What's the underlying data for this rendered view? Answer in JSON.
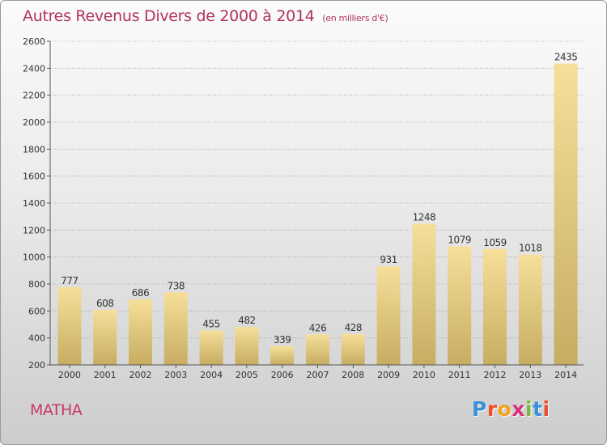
{
  "header": {
    "title": "Autres Revenus Divers de 2000 à 2014",
    "subtitle": "(en milliers d'€)"
  },
  "footer": {
    "place": "MATHA",
    "logo_letters": [
      "P",
      "r",
      "o",
      "x",
      "i",
      "t",
      "i"
    ],
    "logo_colors": [
      "#3a8fd6",
      "#e94f2d",
      "#f2a21d",
      "#d6307b",
      "#7ab83b",
      "#3a8fd6",
      "#e94f2d"
    ]
  },
  "colors": {
    "title": "#b0325f",
    "bar_light": "#f6df9a",
    "bar_dark": "#c7ad62",
    "axis": "#555555"
  },
  "chart_data": {
    "type": "bar",
    "title": "Autres Revenus Divers de 2000 à 2014",
    "subtitle": "(en milliers d'€)",
    "categories": [
      "2000",
      "2001",
      "2002",
      "2003",
      "2004",
      "2005",
      "2006",
      "2007",
      "2008",
      "2009",
      "2010",
      "2011",
      "2012",
      "2013",
      "2014"
    ],
    "values": [
      777,
      608,
      686,
      738,
      455,
      482,
      339,
      426,
      428,
      931,
      1248,
      1079,
      1059,
      1018,
      2435
    ],
    "ylim": [
      200,
      2600
    ],
    "yticks": [
      200,
      400,
      600,
      800,
      1000,
      1200,
      1400,
      1600,
      1800,
      2000,
      2200,
      2400,
      2600
    ],
    "grid": "horizontal dotted",
    "legend": "none"
  }
}
